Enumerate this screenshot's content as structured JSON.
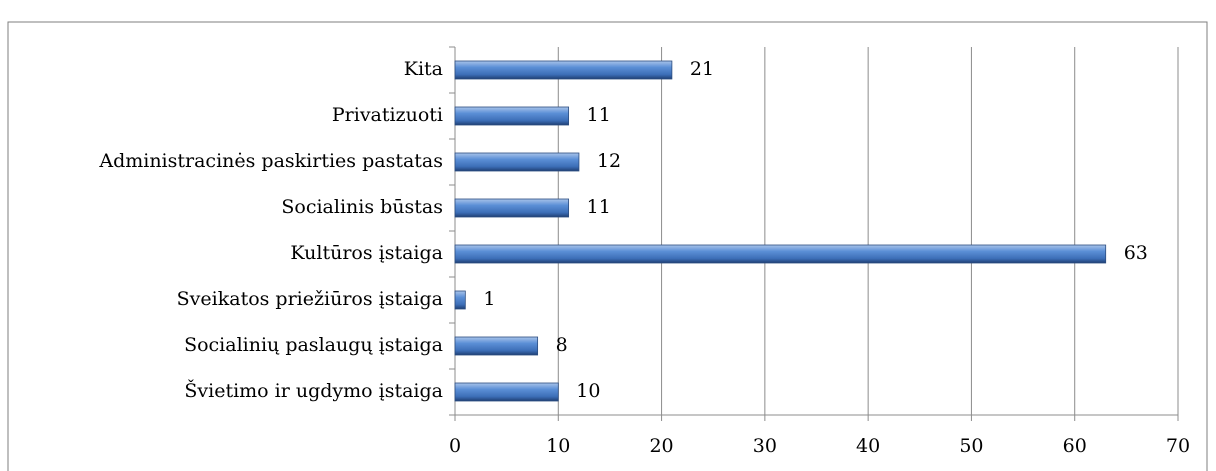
{
  "chart_data": {
    "type": "bar",
    "orientation": "horizontal",
    "categories": [
      "Kita",
      "Privatizuoti",
      "Administracinės paskirties pastatas",
      "Socialinis būstas",
      "Kultūros įstaiga",
      "Sveikatos priežiūros įstaiga",
      "Socialinių paslaugų įstaiga",
      "Švietimo ir ugdymo įstaiga"
    ],
    "values": [
      21,
      11,
      12,
      11,
      63,
      1,
      8,
      10
    ],
    "color": "#4f81bd",
    "xlim": [
      0,
      70
    ],
    "xticks": [
      0,
      10,
      20,
      30,
      40,
      50,
      60,
      70
    ],
    "grid": true
  }
}
